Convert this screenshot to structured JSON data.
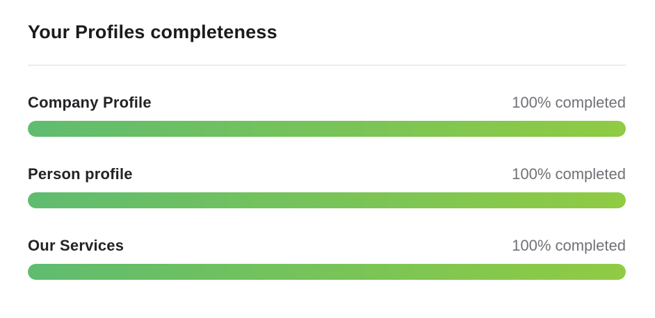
{
  "header": {
    "title": "Your Profiles completeness"
  },
  "colors": {
    "title_text": "#1b1b1d",
    "label_text": "#232327",
    "status_text": "#707077",
    "divider": "#ececec",
    "bar_gradient_start": "#5fbc6f",
    "bar_gradient_end": "#90cb43"
  },
  "profiles": [
    {
      "label": "Company Profile",
      "status": "100% completed",
      "percent": 100
    },
    {
      "label": "Person profile",
      "status": "100% completed",
      "percent": 100
    },
    {
      "label": "Our Services",
      "status": "100% completed",
      "percent": 100
    }
  ]
}
